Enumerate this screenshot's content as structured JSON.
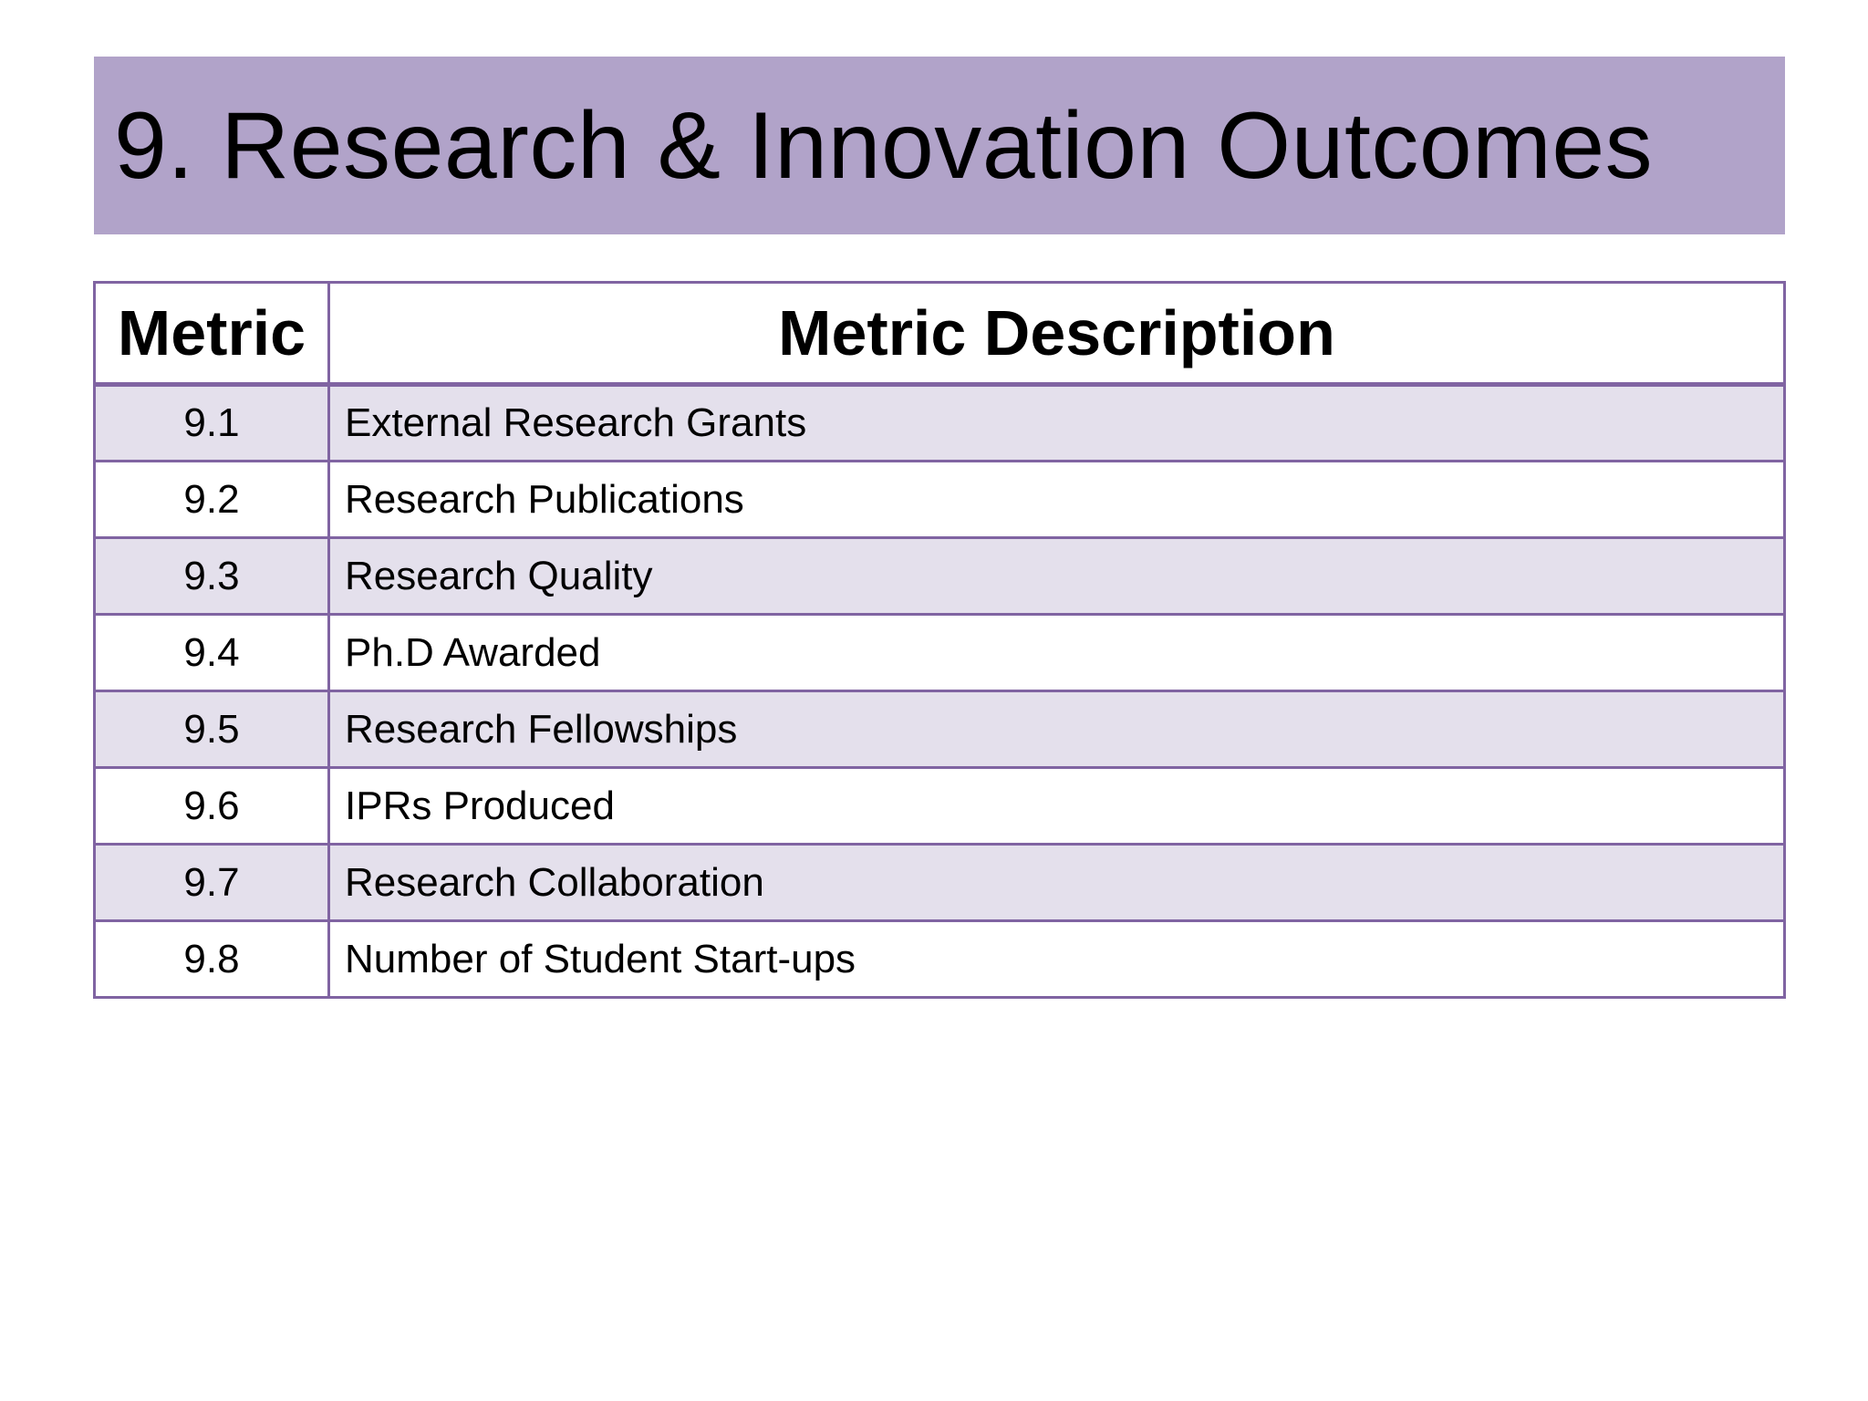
{
  "slide": {
    "title": "9. Research & Innovation Outcomes",
    "colors": {
      "title_bar": "#b1a3c9",
      "table_border": "#8064a2",
      "row_band": "#e4e0ec",
      "row_plain": "#ffffff"
    }
  },
  "table": {
    "headers": {
      "metric": "Metric",
      "description": "Metric Description"
    },
    "rows": [
      {
        "metric": "9.1",
        "description": "External Research Grants"
      },
      {
        "metric": "9.2",
        "description": "Research Publications"
      },
      {
        "metric": "9.3",
        "description": "Research Quality"
      },
      {
        "metric": "9.4",
        "description": "Ph.D Awarded"
      },
      {
        "metric": "9.5",
        "description": "Research Fellowships"
      },
      {
        "metric": "9.6",
        "description": "IPRs Produced"
      },
      {
        "metric": "9.7",
        "description": "Research Collaboration"
      },
      {
        "metric": "9.8",
        "description": "Number of Student Start-ups"
      }
    ]
  }
}
